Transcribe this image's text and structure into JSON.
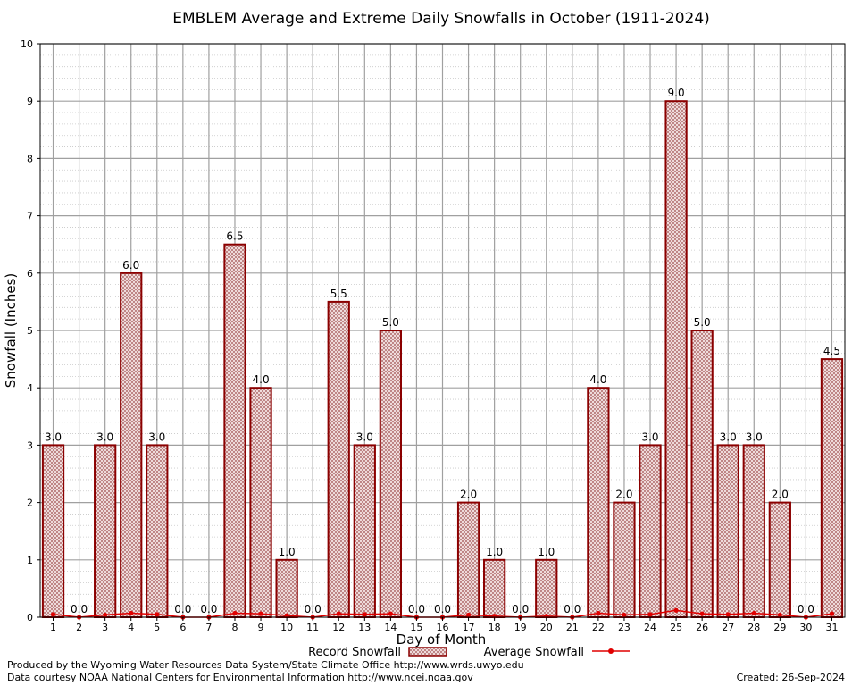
{
  "chart_data": {
    "type": "bar",
    "title": "EMBLEM Average and Extreme Daily Snowfalls in October (1911-2024)",
    "xlabel": "Day of Month",
    "ylabel": "Snowfall (Inches)",
    "ylim": [
      0,
      10
    ],
    "yticks": [
      "0",
      "1",
      "2",
      "3",
      "4",
      "5",
      "6",
      "7",
      "8",
      "9",
      "10"
    ],
    "categories": [
      "1",
      "2",
      "3",
      "4",
      "5",
      "6",
      "7",
      "8",
      "9",
      "10",
      "11",
      "12",
      "13",
      "14",
      "15",
      "16",
      "17",
      "18",
      "19",
      "20",
      "21",
      "22",
      "23",
      "24",
      "25",
      "26",
      "27",
      "28",
      "29",
      "30",
      "31"
    ],
    "series": [
      {
        "name": "Record Snowfall",
        "values": [
          3.0,
          0.0,
          3.0,
          6.0,
          3.0,
          0.0,
          0.0,
          6.5,
          4.0,
          1.0,
          0.0,
          5.5,
          3.0,
          5.0,
          0.0,
          0.0,
          2.0,
          1.0,
          0.0,
          1.0,
          0.0,
          4.0,
          2.0,
          3.0,
          9.0,
          5.0,
          3.0,
          3.0,
          2.0,
          0.0,
          4.5
        ],
        "labels": [
          "3.0",
          "0.0",
          "3.0",
          "6.0",
          "3.0",
          "0.0",
          "0.0",
          "6.5",
          "4.0",
          "1.0",
          "0.0",
          "5.5",
          "3.0",
          "5.0",
          "0.0",
          "0.0",
          "2.0",
          "1.0",
          "0.0",
          "1.0",
          "0.0",
          "4.0",
          "2.0",
          "3.0",
          "9.0",
          "5.0",
          "3.0",
          "3.0",
          "2.0",
          "0.0",
          "4.5"
        ]
      },
      {
        "name": "Average Snowfall",
        "values": [
          0.05,
          0.0,
          0.04,
          0.07,
          0.05,
          0.0,
          0.0,
          0.07,
          0.06,
          0.03,
          0.0,
          0.06,
          0.05,
          0.06,
          0.0,
          0.0,
          0.04,
          0.02,
          0.0,
          0.02,
          0.0,
          0.07,
          0.04,
          0.05,
          0.12,
          0.06,
          0.05,
          0.07,
          0.04,
          0.0,
          0.06
        ]
      }
    ],
    "grid": true,
    "legend_position": "bottom-center"
  },
  "colors": {
    "bar_outline": "#8b0000",
    "bar_fill": "#f0dcdc",
    "avg_line": "#e00000",
    "grid": "#999999"
  },
  "footer": {
    "produced_by": "Produced by the Wyoming Water Resources Data System/State Climate Office http://www.wrds.uwyo.edu",
    "data_courtesy": "Data courtesy NOAA National Centers for Environmental Information http://www.ncei.noaa.gov",
    "created": "Created:  26-Sep-2024"
  }
}
